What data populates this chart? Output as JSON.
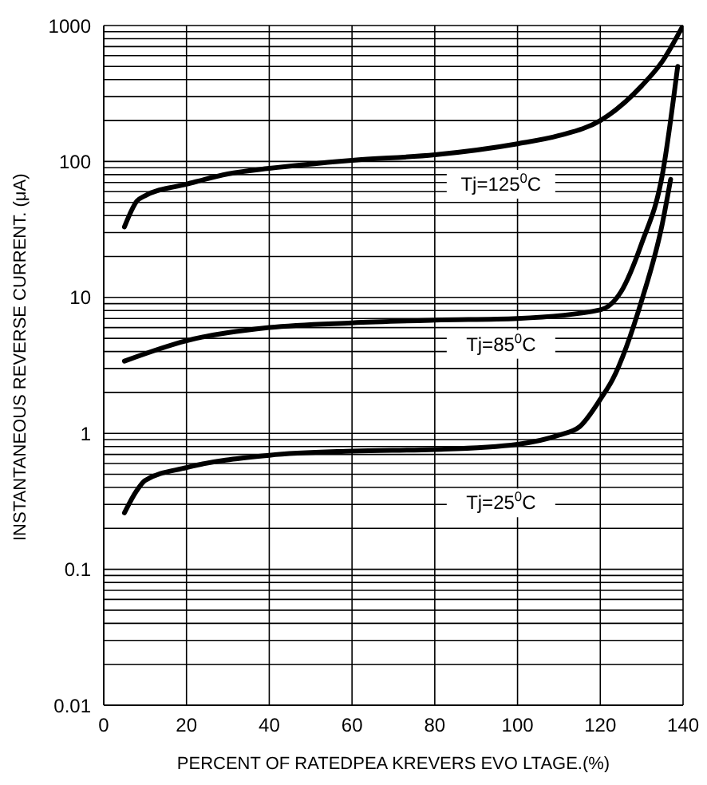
{
  "chart_data": {
    "type": "line",
    "xlabel": "PERCENT OF RATEDPEA KREVERS EVO LTAGE.(%)",
    "ylabel": "INSTANTANEOUS REVERSE CURRENT. (μA)",
    "log": "y",
    "grid": true,
    "marker": "none",
    "line_style": "solid",
    "xlim": [
      0,
      140
    ],
    "xticks": [
      0,
      20,
      40,
      60,
      80,
      100,
      120,
      140
    ],
    "ylim": [
      0.01,
      1000
    ],
    "yticks": [
      0.01,
      0.1,
      1,
      10,
      100,
      1000
    ],
    "series": [
      {
        "name": "Tj=125$^{0}$C",
        "color": "#000000",
        "x": [
          5,
          8,
          10,
          20,
          30,
          40,
          60,
          80,
          100,
          110,
          120,
          130,
          135,
          140
        ],
        "values": [
          33,
          51,
          56,
          68,
          81,
          89,
          102,
          112,
          135,
          155,
          200,
          360,
          545,
          1000
        ]
      },
      {
        "name": "Tj=85$^{0}$C",
        "color": "#000000",
        "x": [
          5,
          20,
          40,
          60,
          80,
          100,
          120,
          125,
          130,
          135,
          138.7
        ],
        "values": [
          3.4,
          4.8,
          6.0,
          6.5,
          6.8,
          7.0,
          8.1,
          11,
          25,
          80,
          500
        ]
      },
      {
        "name": "Tj=25$^{0}$C",
        "color": "#000000",
        "x": [
          5,
          8,
          10,
          20,
          40,
          60,
          80,
          100,
          110,
          115,
          120,
          123,
          130,
          135,
          137
        ],
        "values": [
          0.26,
          0.38,
          0.45,
          0.56,
          0.69,
          0.74,
          0.76,
          0.83,
          0.97,
          1.12,
          1.78,
          2.5,
          9.5,
          35,
          74
        ]
      }
    ]
  }
}
